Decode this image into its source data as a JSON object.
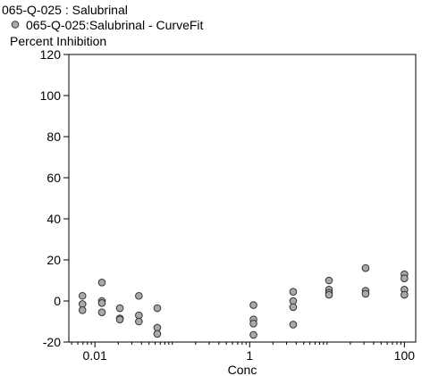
{
  "chart_data": {
    "type": "scatter",
    "title": "065-Q-025  : Salubrinal",
    "legend": "065-Q-025:Salubrinal - CurveFit",
    "ylabel": "Percent  Inhibition",
    "xlabel": "Conc",
    "x_scale": "log",
    "xlim": [
      0.0046,
      140
    ],
    "ylim": [
      -20,
      120
    ],
    "yticks": [
      -20,
      0,
      20,
      40,
      60,
      80,
      100,
      120
    ],
    "yticklabels": [
      "-20",
      "0",
      "20",
      "40",
      "60",
      "80",
      "100",
      "120"
    ],
    "xticks": [
      0.01,
      1,
      100
    ],
    "xticklabels": [
      "0.01",
      "1",
      "100"
    ],
    "grid": false,
    "legend_position": "top-left",
    "marker_color": "#a9a9a9",
    "series": [
      {
        "points": [
          {
            "x": 0.0069,
            "y": 2.5
          },
          {
            "x": 0.0069,
            "y": -1.5
          },
          {
            "x": 0.0069,
            "y": -4.5
          },
          {
            "x": 0.0123,
            "y": 9
          },
          {
            "x": 0.0123,
            "y": 0
          },
          {
            "x": 0.0123,
            "y": -1
          },
          {
            "x": 0.0123,
            "y": -5.5
          },
          {
            "x": 0.021,
            "y": -3.5
          },
          {
            "x": 0.021,
            "y": -8.5
          },
          {
            "x": 0.021,
            "y": -9
          },
          {
            "x": 0.037,
            "y": 2.5
          },
          {
            "x": 0.037,
            "y": -7
          },
          {
            "x": 0.037,
            "y": -10
          },
          {
            "x": 0.064,
            "y": -3.5
          },
          {
            "x": 0.064,
            "y": -13
          },
          {
            "x": 0.064,
            "y": -16
          },
          {
            "x": 1.12,
            "y": -2
          },
          {
            "x": 1.12,
            "y": -9
          },
          {
            "x": 1.12,
            "y": -11
          },
          {
            "x": 1.12,
            "y": -16.5
          },
          {
            "x": 3.65,
            "y": 4.5
          },
          {
            "x": 3.65,
            "y": 0
          },
          {
            "x": 3.65,
            "y": -3
          },
          {
            "x": 3.65,
            "y": -11.5
          },
          {
            "x": 10.6,
            "y": 10
          },
          {
            "x": 10.6,
            "y": 5.5
          },
          {
            "x": 10.6,
            "y": 4
          },
          {
            "x": 10.6,
            "y": 3
          },
          {
            "x": 31.5,
            "y": 16
          },
          {
            "x": 31.5,
            "y": 5
          },
          {
            "x": 31.5,
            "y": 3.5
          },
          {
            "x": 100,
            "y": 13
          },
          {
            "x": 100,
            "y": 11
          },
          {
            "x": 100,
            "y": 5.5
          },
          {
            "x": 100,
            "y": 3
          }
        ]
      }
    ]
  }
}
